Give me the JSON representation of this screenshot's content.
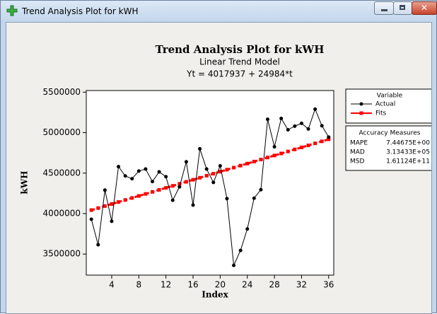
{
  "window_title": "Trend Analysis Plot for kWH",
  "chart_data": {
    "type": "line",
    "title": "Trend Analysis Plot for kWH",
    "subtitle": "Linear Trend Model",
    "equation": "Yt = 4017937 + 24984*t",
    "x_label": "Index",
    "y_label": "kWH",
    "x": [
      1,
      2,
      3,
      4,
      5,
      6,
      7,
      8,
      9,
      10,
      11,
      12,
      13,
      14,
      15,
      16,
      17,
      18,
      19,
      20,
      21,
      22,
      23,
      24,
      25,
      26,
      27,
      28,
      29,
      30,
      31,
      32,
      33,
      34,
      35,
      36
    ],
    "series": [
      {
        "name": "Actual",
        "color": "#000000",
        "marker": "circle",
        "dashed": false,
        "values": [
          3930000,
          3615000,
          4290000,
          3905000,
          4580000,
          4465000,
          4430000,
          4525000,
          4550000,
          4395000,
          4515000,
          4455000,
          4165000,
          4330000,
          4640000,
          4105000,
          4800000,
          4550000,
          4385000,
          4590000,
          4185000,
          3360000,
          3545000,
          3810000,
          4190000,
          4295000,
          5165000,
          4825000,
          5175000,
          5035000,
          5080000,
          5115000,
          5045000,
          5290000,
          5085000,
          4945000
        ]
      },
      {
        "name": "Fits",
        "color": "#ff0000",
        "marker": "square",
        "dashed": true,
        "values": [
          4042921,
          4067905,
          4092889,
          4117873,
          4142857,
          4167841,
          4192825,
          4217809,
          4242793,
          4267777,
          4292761,
          4317745,
          4342729,
          4367713,
          4392697,
          4417681,
          4442665,
          4467649,
          4492633,
          4517617,
          4542601,
          4567585,
          4592569,
          4617553,
          4642537,
          4667521,
          4692505,
          4717489,
          4742473,
          4767457,
          4792441,
          4817425,
          4842409,
          4867393,
          4892377,
          4917361
        ]
      }
    ],
    "xlim": [
      0.25,
      36.75
    ],
    "ylim": [
      3240000,
      5520000
    ],
    "xticks": [
      4,
      8,
      12,
      16,
      20,
      24,
      28,
      32,
      36
    ],
    "yticks": [
      3500000,
      4000000,
      4500000,
      5000000,
      5500000
    ],
    "legend_title": "Variable",
    "accuracy": {
      "title": "Accuracy Measures",
      "rows": [
        [
          "MAPE",
          "7.44675E+00"
        ],
        [
          "MAD",
          "3.13433E+05"
        ],
        [
          "MSD",
          "1.61124E+11"
        ]
      ]
    }
  }
}
